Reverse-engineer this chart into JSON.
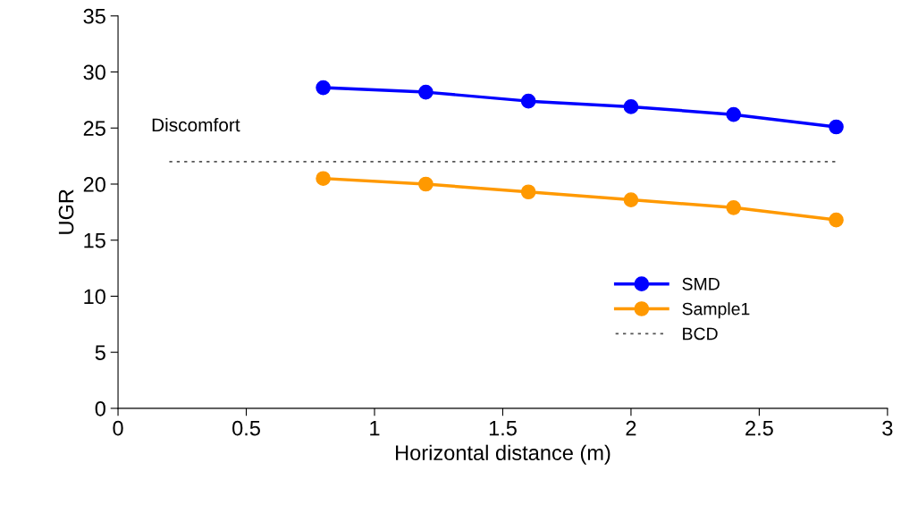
{
  "chart_data": {
    "type": "line",
    "xlabel": "Horizontal distance (m)",
    "ylabel": "UGR",
    "xlim": [
      0,
      3
    ],
    "xticks": [
      0,
      0.5,
      1,
      1.5,
      2,
      2.5,
      3
    ],
    "ylim": [
      0,
      35
    ],
    "yticks": [
      0,
      5,
      10,
      15,
      20,
      25,
      30,
      35
    ],
    "grid": false,
    "legend": "right",
    "marker": "circle",
    "line_style": "solid",
    "series": [
      {
        "name": "SMD",
        "color": "#0000ff",
        "x": [
          0.8,
          1.2,
          1.6,
          2.0,
          2.4,
          2.8
        ],
        "values": [
          28.6,
          28.2,
          27.4,
          26.9,
          26.2,
          25.1
        ]
      },
      {
        "name": "Sample1",
        "color": "#ff9900",
        "x": [
          0.8,
          1.2,
          1.6,
          2.0,
          2.4,
          2.8
        ],
        "values": [
          20.5,
          20.0,
          19.3,
          18.6,
          17.9,
          16.8
        ]
      },
      {
        "name": "BCD",
        "color": "#555555",
        "x": [
          0.2,
          2.8
        ],
        "values": [
          22,
          22
        ],
        "marker": "none",
        "line_style": "dashed"
      }
    ],
    "annotations": [
      "Discomfort"
    ]
  }
}
